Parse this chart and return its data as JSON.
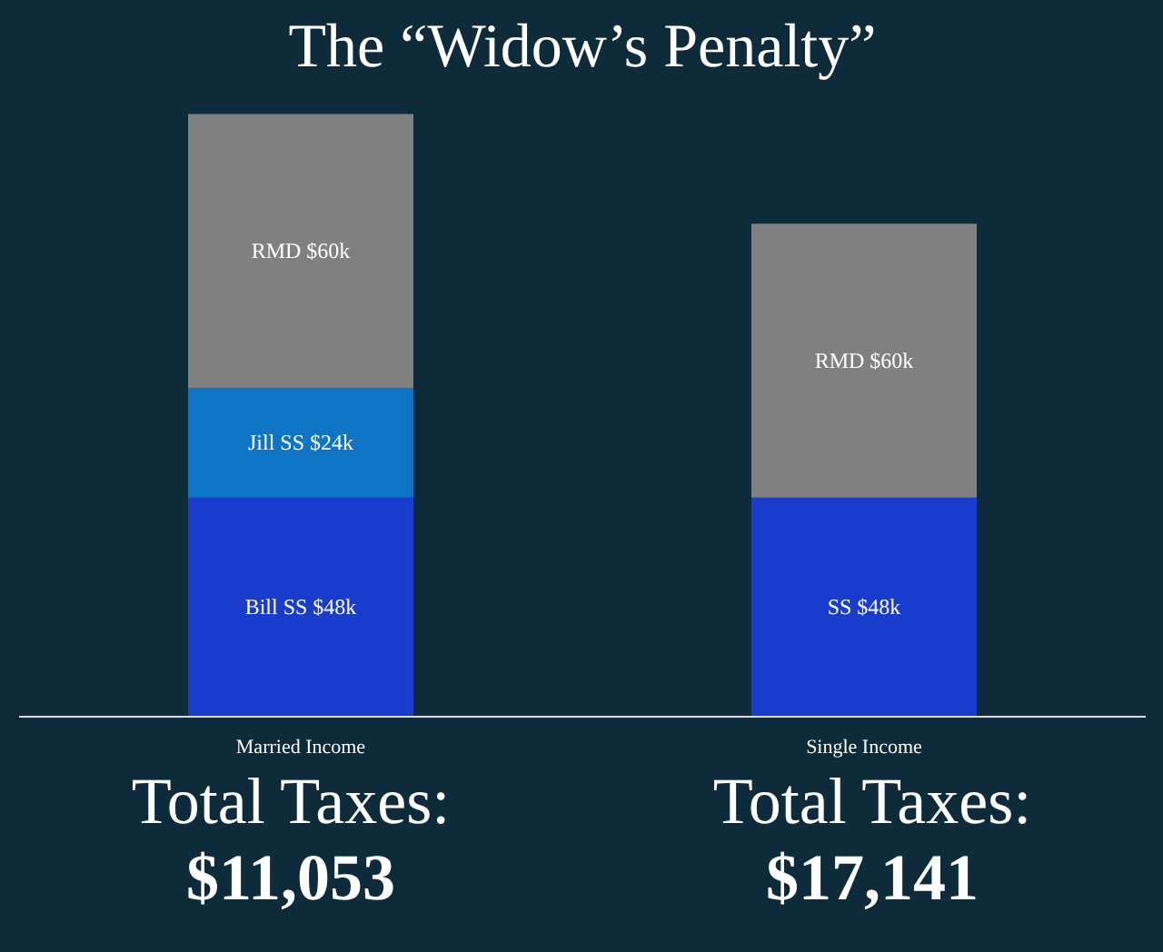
{
  "chart_data": {
    "type": "bar",
    "title": "The “Widow’s Penalty”",
    "stacked": true,
    "categories": [
      "Married Income",
      "Single Income"
    ],
    "series": [
      {
        "color": "#1a3ccc",
        "values": [
          48000,
          48000
        ],
        "value_labels": [
          "Bill SS $48k",
          "SS $48k"
        ]
      },
      {
        "color": "#0f74c4",
        "values": [
          24000,
          null
        ],
        "value_labels": [
          "Jill SS $24k",
          null
        ]
      },
      {
        "color": "#808080",
        "values": [
          60000,
          60000
        ],
        "value_labels": [
          "RMD $60k",
          "RMD $60k"
        ]
      }
    ],
    "annotations": [
      "Total Taxes:",
      "$11,053",
      "Total Taxes:",
      "$17,141"
    ]
  }
}
